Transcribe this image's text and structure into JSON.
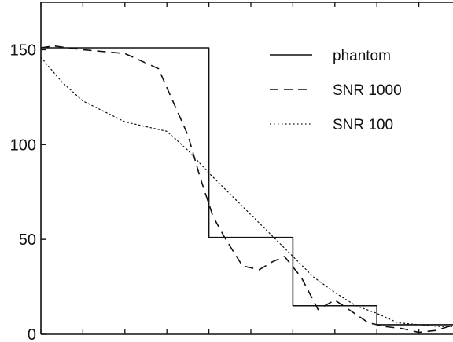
{
  "chart_data": {
    "type": "line",
    "title": "",
    "xlabel": "",
    "ylabel": "",
    "xlim": [
      0,
      100
    ],
    "ylim": [
      0,
      175
    ],
    "y_ticks": [
      0,
      50,
      100,
      150
    ],
    "x_ticks": [
      0,
      10,
      20,
      30,
      40,
      50,
      60,
      70,
      80,
      90,
      100
    ],
    "x_tick_labels_shown": false,
    "grid": false,
    "legend_position": "top-right",
    "series": [
      {
        "name": "phantom",
        "style": "solid",
        "color": "#111111",
        "x": [
          0,
          40,
          40,
          60,
          60,
          80,
          80,
          100
        ],
        "y": [
          151,
          151,
          51,
          51,
          15,
          15,
          5,
          5
        ]
      },
      {
        "name": "SNR 1000",
        "style": "dashed",
        "color": "#111111",
        "x": [
          0,
          3,
          10,
          20,
          28,
          31,
          35,
          38,
          41,
          44,
          48,
          52,
          55,
          58,
          62,
          66,
          70,
          74,
          78,
          82,
          86,
          90,
          94,
          97,
          100
        ],
        "y": [
          151,
          152,
          150,
          148,
          140,
          125,
          105,
          82,
          62,
          50,
          36,
          34,
          38,
          41,
          30,
          13,
          18,
          12,
          6,
          4,
          3,
          1,
          2,
          4,
          5
        ]
      },
      {
        "name": "SNR 100",
        "style": "dotted",
        "color": "#111111",
        "x": [
          0,
          5,
          10,
          20,
          30,
          35,
          40,
          45,
          50,
          55,
          60,
          65,
          70,
          75,
          80,
          85,
          90,
          95,
          100
        ],
        "y": [
          146,
          133,
          123,
          112,
          107,
          97,
          85,
          74,
          63,
          52,
          41,
          30,
          22,
          15,
          11,
          6,
          5,
          4,
          4
        ]
      }
    ]
  }
}
